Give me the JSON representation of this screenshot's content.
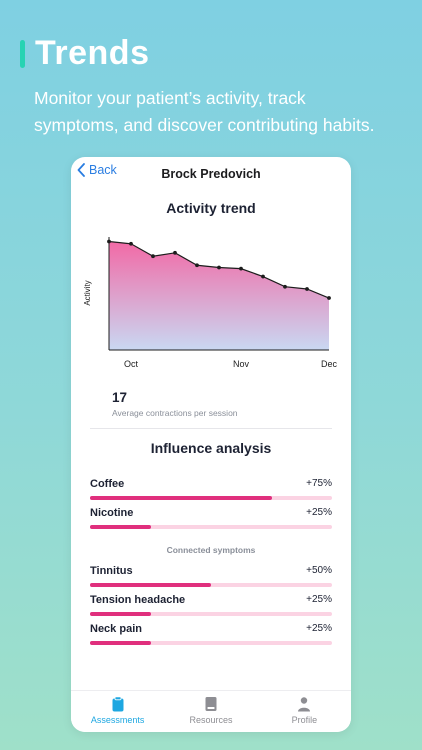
{
  "hero": {
    "title": "Trends",
    "subtitle_line1": "Monitor your patient’s activity, track",
    "subtitle_line2": "symptoms, and discover contributing habits."
  },
  "nav": {
    "back_label": "Back",
    "title": "Brock Predovich"
  },
  "activity": {
    "title": "Activity trend",
    "stat_value": "17",
    "stat_label": "Average contractions per session"
  },
  "chart_data": {
    "type": "area",
    "title": "Activity trend",
    "ylabel": "Activity",
    "xlabel": "",
    "categories": [
      "Oct",
      "Nov",
      "Dec"
    ],
    "x": [
      0,
      1,
      2,
      3,
      4,
      5,
      6,
      7,
      8,
      9,
      10
    ],
    "values": [
      96,
      94,
      83,
      86,
      75,
      73,
      72,
      65,
      56,
      54,
      46
    ],
    "ylim": [
      0,
      100
    ],
    "grid": false,
    "colors": {
      "line": "#1d1d1d",
      "fill_top": "#f26aa6",
      "fill_bottom": "#c9d8f2"
    }
  },
  "influence": {
    "title": "Influence analysis",
    "habits": [
      {
        "label": "Coffee",
        "percent_label": "+75%",
        "value": 0.75
      },
      {
        "label": "Nicotine",
        "percent_label": "+25%",
        "value": 0.25
      }
    ],
    "symptoms_header": "Connected symptoms",
    "symptoms": [
      {
        "label": "Tinnitus",
        "percent_label": "+50%",
        "value": 0.5
      },
      {
        "label": "Tension headache",
        "percent_label": "+25%",
        "value": 0.25
      },
      {
        "label": "Neck pain",
        "percent_label": "+25%",
        "value": 0.25
      }
    ]
  },
  "tabs": [
    {
      "label": "Assessments",
      "icon": "clipboard-icon",
      "active": true
    },
    {
      "label": "Resources",
      "icon": "book-icon",
      "active": false
    },
    {
      "label": "Profile",
      "icon": "person-icon",
      "active": false
    }
  ],
  "colors": {
    "accent": "#1ea7e1",
    "bar_fill": "#e02f7d",
    "bar_track": "#fbd3e3",
    "hero_bar": "#27d3b3"
  }
}
